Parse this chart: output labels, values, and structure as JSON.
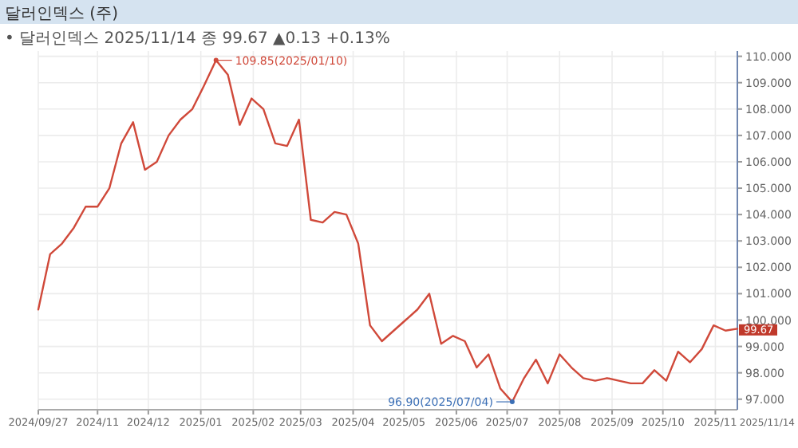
{
  "chart_data": {
    "type": "line",
    "title": "달러인덱스 (주)",
    "subtitle": "• 달러인덱스 2025/11/14 종 99.67 ▲0.13 +0.13%",
    "x": [
      "2024-09-27",
      "2024-10-04",
      "2024-10-11",
      "2024-10-18",
      "2024-10-25",
      "2024-11-01",
      "2024-11-08",
      "2024-11-15",
      "2024-11-22",
      "2024-11-29",
      "2024-12-06",
      "2024-12-13",
      "2024-12-20",
      "2024-12-27",
      "2025-01-03",
      "2025-01-10",
      "2025-01-17",
      "2025-01-24",
      "2025-01-31",
      "2025-02-07",
      "2025-02-14",
      "2025-02-21",
      "2025-02-28",
      "2025-03-07",
      "2025-03-14",
      "2025-03-21",
      "2025-03-28",
      "2025-04-04",
      "2025-04-11",
      "2025-04-18",
      "2025-04-25",
      "2025-05-02",
      "2025-05-09",
      "2025-05-16",
      "2025-05-23",
      "2025-05-30",
      "2025-06-06",
      "2025-06-13",
      "2025-06-20",
      "2025-06-27",
      "2025-07-04",
      "2025-07-11",
      "2025-07-18",
      "2025-07-25",
      "2025-08-01",
      "2025-08-08",
      "2025-08-15",
      "2025-08-22",
      "2025-08-29",
      "2025-09-05",
      "2025-09-12",
      "2025-09-19",
      "2025-09-26",
      "2025-10-03",
      "2025-10-10",
      "2025-10-17",
      "2025-10-24",
      "2025-10-31",
      "2025-11-07",
      "2025-11-14"
    ],
    "series": [
      {
        "color": "#d0493a",
        "values": [
          100.4,
          102.5,
          102.9,
          103.5,
          104.3,
          104.3,
          105.0,
          106.7,
          107.5,
          105.7,
          106.0,
          107.0,
          107.6,
          108.0,
          108.9,
          109.85,
          109.3,
          107.4,
          108.4,
          108.0,
          106.7,
          106.6,
          107.6,
          103.8,
          103.7,
          104.1,
          104.0,
          102.9,
          99.8,
          99.2,
          99.6,
          100.0,
          100.4,
          101.0,
          99.1,
          99.4,
          99.2,
          98.2,
          98.7,
          97.4,
          96.9,
          97.8,
          98.5,
          97.6,
          98.7,
          98.2,
          97.8,
          97.7,
          97.8,
          97.7,
          97.6,
          97.6,
          98.1,
          97.7,
          98.8,
          98.4,
          98.9,
          99.8,
          99.6,
          99.67
        ]
      }
    ],
    "xlim": [
      "2024-09-27",
      "2025-11-14"
    ],
    "xticks": [
      {
        "value": "2024-09-27",
        "label": "2024/09/27"
      },
      {
        "value": "2024-11-01",
        "label": "2024/11"
      },
      {
        "value": "2024-12-01",
        "label": "2024/12"
      },
      {
        "value": "2025-01-01",
        "label": "2025/01"
      },
      {
        "value": "2025-02-01",
        "label": "2025/02"
      },
      {
        "value": "2025-03-01",
        "label": "2025/03"
      },
      {
        "value": "2025-04-01",
        "label": "2025/04"
      },
      {
        "value": "2025-05-01",
        "label": "2025/05"
      },
      {
        "value": "2025-06-01",
        "label": "2025/06"
      },
      {
        "value": "2025-07-01",
        "label": "2025/07"
      },
      {
        "value": "2025-08-01",
        "label": "2025/08"
      },
      {
        "value": "2025-09-01",
        "label": "2025/09"
      },
      {
        "value": "2025-10-01",
        "label": "2025/10"
      },
      {
        "value": "2025-11-01",
        "label": "2025/11"
      }
    ],
    "ylim": [
      96.6,
      110.2
    ],
    "yticks": [
      {
        "value": 97,
        "label": "97.000"
      },
      {
        "value": 98,
        "label": "98.000"
      },
      {
        "value": 99,
        "label": "99.000"
      },
      {
        "value": 100,
        "label": "100.000"
      },
      {
        "value": 101,
        "label": "101.000"
      },
      {
        "value": 102,
        "label": "102.000"
      },
      {
        "value": 103,
        "label": "103.000"
      },
      {
        "value": 104,
        "label": "104.000"
      },
      {
        "value": 105,
        "label": "105.000"
      },
      {
        "value": 106,
        "label": "106.000"
      },
      {
        "value": 107,
        "label": "107.000"
      },
      {
        "value": 108,
        "label": "108.000"
      },
      {
        "value": 109,
        "label": "109.000"
      },
      {
        "value": 110,
        "label": "110.000"
      }
    ],
    "grid": true,
    "annotations": [
      {
        "text": "109.85(2025/01/10)",
        "x": "2025-01-10",
        "y": 109.85
      },
      {
        "text": "96.90(2025/07/04)",
        "x": "2025-07-04",
        "y": 96.9
      },
      {
        "text": "99.67",
        "x": "2025-11-14",
        "y": 99.67
      },
      "2025/11/14"
    ]
  }
}
